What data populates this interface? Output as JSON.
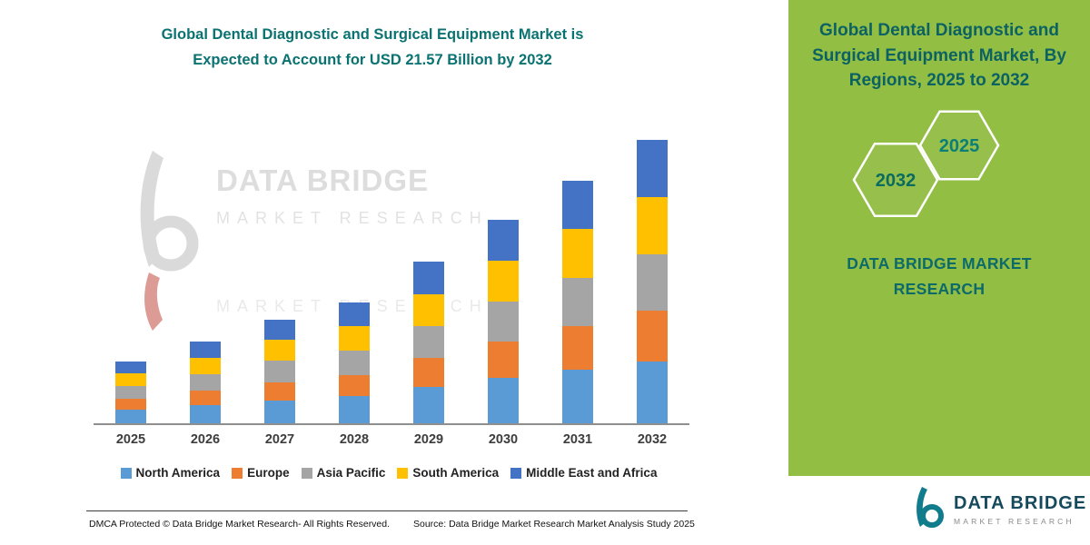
{
  "accent_teal": "#0B7272",
  "left": {
    "title_line1": "Global Dental Diagnostic and Surgical Equipment Market is",
    "title_line2": "Expected to Account for USD 21.57 Billion by 2032",
    "watermark": {
      "line1": "DATA BRIDGE",
      "line2": "MARKET RESEARCH",
      "line3": "MARKET RESEARCH"
    },
    "footer_dmca": "DMCA Protected © Data Bridge Market Research- All Rights Reserved.",
    "footer_source": "Source: Data Bridge Market Research Market Analysis Study 2025"
  },
  "chart_data": {
    "type": "bar",
    "stacked": true,
    "title": "Global Dental Diagnostic and Surgical Equipment Market is Expected to Account for USD 21.57 Billion by 2032",
    "unit": "USD Billion",
    "xlabel": "",
    "ylabel": "",
    "ylim": [
      0,
      22
    ],
    "grid": false,
    "legend_position": "bottom",
    "categories": [
      "2025",
      "2026",
      "2027",
      "2028",
      "2029",
      "2030",
      "2031",
      "2032"
    ],
    "series": [
      {
        "name": "North America",
        "color": "#5B9BD5",
        "values": [
          1.05,
          1.4,
          1.75,
          2.05,
          2.75,
          3.45,
          4.1,
          4.7
        ]
      },
      {
        "name": "Europe",
        "color": "#ED7D31",
        "values": [
          0.85,
          1.1,
          1.4,
          1.65,
          2.2,
          2.75,
          3.3,
          3.9
        ]
      },
      {
        "name": "Asia Pacific",
        "color": "#A5A5A5",
        "values": [
          0.95,
          1.25,
          1.6,
          1.85,
          2.45,
          3.1,
          3.7,
          4.3
        ]
      },
      {
        "name": "South America",
        "color": "#FFC000",
        "values": [
          0.95,
          1.25,
          1.6,
          1.85,
          2.45,
          3.1,
          3.7,
          4.3
        ]
      },
      {
        "name": "Middle East and Africa",
        "color": "#4472C4",
        "values": [
          0.9,
          1.2,
          1.55,
          1.8,
          2.45,
          3.1,
          3.7,
          4.37
        ]
      }
    ],
    "totals_usd_billion": [
      4.7,
      6.2,
      7.9,
      9.2,
      12.3,
      15.5,
      18.5,
      21.57
    ]
  },
  "right_panel": {
    "background": "#92BE44",
    "title": "Global Dental Diagnostic and Surgical Equipment Market, By Regions, 2025 to 2032",
    "hexagons": [
      "2032",
      "2025"
    ],
    "brand": "DATA BRIDGE MARKET RESEARCH"
  },
  "bottom_logo": {
    "name": "DATA BRIDGE",
    "sub": "MARKET RESEARCH"
  }
}
